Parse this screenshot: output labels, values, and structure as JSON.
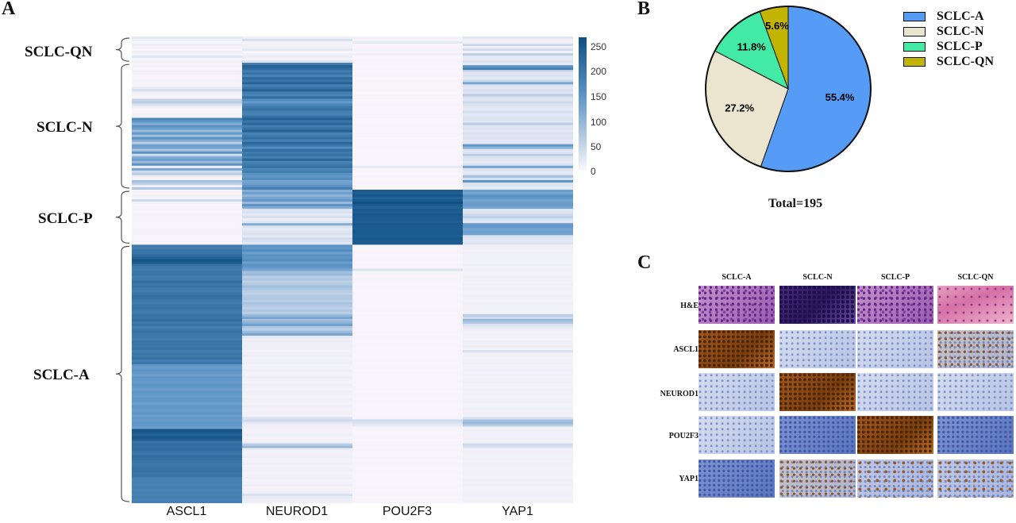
{
  "panels": {
    "a": "A",
    "b": "B",
    "c": "C"
  },
  "chart_data": [
    {
      "type": "heatmap",
      "columns": [
        "ASCL1",
        "NEUROD1",
        "POU2F3",
        "YAP1"
      ],
      "groups": [
        {
          "name": "SCLC-QN",
          "rows": 11
        },
        {
          "name": "SCLC-N",
          "rows": 53
        },
        {
          "name": "SCLC-P",
          "rows": 23
        },
        {
          "name": "SCLC-A",
          "rows": 108
        }
      ],
      "colorbar": {
        "ticks": [
          250,
          200,
          150,
          100,
          50,
          0
        ],
        "range": [
          0,
          260
        ],
        "low_color": "#fbf6fb",
        "high_color": "#0f4f82"
      },
      "values": [
        [
          [
            20,
            10,
            8,
            25
          ],
          [
            10,
            35,
            5,
            10
          ],
          [
            5,
            5,
            20,
            8
          ],
          [
            15,
            8,
            3,
            45
          ],
          [
            8,
            12,
            4,
            12
          ],
          [
            3,
            20,
            6,
            40
          ],
          [
            12,
            5,
            3,
            8
          ],
          [
            6,
            10,
            10,
            60
          ],
          [
            25,
            15,
            2,
            20
          ],
          [
            4,
            6,
            5,
            18
          ],
          [
            10,
            30,
            4,
            30
          ]
        ],
        [
          [
            5,
            190,
            3,
            20
          ],
          [
            8,
            230,
            2,
            150
          ],
          [
            3,
            210,
            4,
            175
          ],
          [
            10,
            185,
            2,
            40
          ],
          [
            6,
            200,
            3,
            25
          ],
          [
            4,
            175,
            5,
            30
          ],
          [
            3,
            215,
            2,
            20
          ],
          [
            7,
            195,
            4,
            45
          ],
          [
            5,
            225,
            3,
            120
          ],
          [
            4,
            180,
            2,
            30
          ],
          [
            20,
            200,
            3,
            25
          ],
          [
            35,
            230,
            5,
            35
          ],
          [
            8,
            185,
            2,
            25
          ],
          [
            5,
            175,
            4,
            60
          ],
          [
            4,
            210,
            3,
            30
          ],
          [
            50,
            160,
            2,
            25
          ],
          [
            60,
            140,
            3,
            40
          ],
          [
            30,
            170,
            4,
            30
          ],
          [
            10,
            190,
            2,
            25
          ],
          [
            5,
            200,
            3,
            20
          ],
          [
            3,
            180,
            2,
            35
          ],
          [
            8,
            175,
            4,
            20
          ],
          [
            6,
            205,
            3,
            25
          ],
          [
            170,
            230,
            2,
            30
          ],
          [
            140,
            195,
            3,
            25
          ],
          [
            110,
            220,
            5,
            60
          ],
          [
            150,
            185,
            4,
            25
          ],
          [
            130,
            200,
            3,
            30
          ],
          [
            90,
            230,
            2,
            20
          ],
          [
            140,
            175,
            4,
            35
          ],
          [
            80,
            190,
            3,
            25
          ],
          [
            150,
            205,
            2,
            30
          ],
          [
            110,
            180,
            4,
            20
          ],
          [
            60,
            220,
            3,
            25
          ],
          [
            130,
            195,
            5,
            140
          ],
          [
            120,
            160,
            4,
            100
          ],
          [
            70,
            210,
            3,
            30
          ],
          [
            150,
            185,
            2,
            25
          ],
          [
            40,
            200,
            4,
            60
          ],
          [
            110,
            180,
            3,
            30
          ],
          [
            130,
            220,
            5,
            25
          ],
          [
            90,
            175,
            2,
            20
          ],
          [
            150,
            190,
            4,
            30
          ],
          [
            10,
            200,
            20,
            120
          ],
          [
            120,
            170,
            3,
            30
          ],
          [
            40,
            185,
            4,
            20
          ],
          [
            60,
            150,
            2,
            25
          ],
          [
            10,
            140,
            4,
            80
          ],
          [
            5,
            160,
            3,
            30
          ],
          [
            80,
            120,
            5,
            150
          ],
          [
            60,
            130,
            4,
            30
          ],
          [
            10,
            150,
            3,
            25
          ],
          [
            70,
            180,
            2,
            20
          ]
        ],
        [
          [
            5,
            110,
            240,
            130
          ],
          [
            3,
            130,
            235,
            120
          ],
          [
            8,
            100,
            250,
            150
          ],
          [
            4,
            120,
            230,
            140
          ],
          [
            45,
            140,
            245,
            125
          ],
          [
            6,
            90,
            260,
            130
          ],
          [
            3,
            150,
            240,
            135
          ],
          [
            5,
            110,
            230,
            120
          ],
          [
            4,
            25,
            240,
            25
          ],
          [
            3,
            30,
            235,
            30
          ],
          [
            6,
            20,
            245,
            40
          ],
          [
            4,
            35,
            238,
            60
          ],
          [
            5,
            15,
            240,
            30
          ],
          [
            3,
            25,
            235,
            25
          ],
          [
            4,
            110,
            245,
            135
          ],
          [
            5,
            30,
            240,
            140
          ],
          [
            3,
            20,
            238,
            120
          ],
          [
            6,
            25,
            244,
            130
          ],
          [
            4,
            30,
            240,
            125
          ],
          [
            5,
            20,
            236,
            30
          ],
          [
            3,
            40,
            245,
            25
          ],
          [
            4,
            30,
            238,
            20
          ],
          [
            5,
            25,
            240,
            30
          ]
        ],
        [
          [
            190,
            150,
            5,
            8
          ],
          [
            185,
            140,
            3,
            10
          ],
          [
            200,
            160,
            4,
            6
          ],
          [
            195,
            130,
            5,
            12
          ],
          [
            210,
            150,
            3,
            8
          ],
          [
            230,
            145,
            4,
            10
          ],
          [
            250,
            160,
            5,
            8
          ],
          [
            240,
            130,
            3,
            6
          ],
          [
            200,
            150,
            4,
            12
          ],
          [
            190,
            140,
            5,
            8
          ],
          [
            185,
            120,
            30,
            10
          ],
          [
            195,
            80,
            5,
            6
          ],
          [
            200,
            90,
            4,
            8
          ],
          [
            185,
            60,
            3,
            10
          ],
          [
            190,
            70,
            5,
            8
          ],
          [
            210,
            55,
            4,
            6
          ],
          [
            195,
            65,
            3,
            12
          ],
          [
            200,
            80,
            5,
            8
          ],
          [
            190,
            70,
            4,
            10
          ],
          [
            185,
            60,
            3,
            6
          ],
          [
            195,
            55,
            5,
            8
          ],
          [
            210,
            65,
            4,
            10
          ],
          [
            200,
            70,
            3,
            8
          ],
          [
            190,
            60,
            5,
            6
          ],
          [
            185,
            75,
            4,
            12
          ],
          [
            195,
            65,
            3,
            8
          ],
          [
            200,
            55,
            5,
            10
          ],
          [
            190,
            70,
            4,
            8
          ],
          [
            185,
            60,
            3,
            6
          ],
          [
            200,
            90,
            5,
            60
          ],
          [
            195,
            120,
            4,
            40
          ],
          [
            210,
            80,
            3,
            90
          ],
          [
            190,
            100,
            5,
            70
          ],
          [
            200,
            130,
            4,
            30
          ],
          [
            185,
            70,
            3,
            20
          ],
          [
            195,
            60,
            5,
            10
          ],
          [
            200,
            90,
            4,
            8
          ],
          [
            190,
            120,
            3,
            12
          ],
          [
            190,
            20,
            5,
            8
          ],
          [
            185,
            10,
            4,
            6
          ],
          [
            200,
            15,
            3,
            10
          ],
          [
            195,
            10,
            5,
            8
          ],
          [
            190,
            12,
            4,
            12
          ],
          [
            200,
            10,
            3,
            6
          ],
          [
            185,
            8,
            5,
            30
          ],
          [
            195,
            10,
            4,
            8
          ],
          [
            190,
            12,
            3,
            10
          ],
          [
            200,
            8,
            5,
            6
          ],
          [
            185,
            10,
            4,
            8
          ],
          [
            195,
            12,
            3,
            10
          ],
          [
            140,
            8,
            5,
            8
          ],
          [
            135,
            6,
            4,
            6
          ],
          [
            145,
            10,
            3,
            12
          ],
          [
            140,
            8,
            5,
            8
          ],
          [
            130,
            6,
            4,
            10
          ],
          [
            145,
            10,
            3,
            6
          ],
          [
            140,
            8,
            5,
            8
          ],
          [
            135,
            6,
            4,
            10
          ],
          [
            145,
            10,
            3,
            8
          ],
          [
            140,
            8,
            5,
            6
          ],
          [
            130,
            6,
            4,
            12
          ],
          [
            145,
            10,
            3,
            8
          ],
          [
            140,
            8,
            5,
            10
          ],
          [
            135,
            6,
            4,
            6
          ],
          [
            145,
            10,
            3,
            8
          ],
          [
            140,
            8,
            5,
            10
          ],
          [
            130,
            6,
            4,
            8
          ],
          [
            145,
            10,
            3,
            6
          ],
          [
            140,
            8,
            5,
            12
          ],
          [
            135,
            6,
            4,
            8
          ],
          [
            145,
            10,
            3,
            10
          ],
          [
            130,
            6,
            4,
            8
          ],
          [
            140,
            30,
            5,
            30
          ],
          [
            135,
            40,
            40,
            80
          ],
          [
            145,
            20,
            30,
            90
          ],
          [
            140,
            10,
            20,
            60
          ],
          [
            130,
            8,
            5,
            8
          ],
          [
            250,
            6,
            4,
            10
          ],
          [
            240,
            8,
            3,
            8
          ],
          [
            230,
            10,
            5,
            12
          ],
          [
            245,
            6,
            4,
            8
          ],
          [
            235,
            8,
            3,
            10
          ],
          [
            200,
            10,
            5,
            8
          ],
          [
            210,
            60,
            4,
            40
          ],
          [
            205,
            90,
            3,
            30
          ],
          [
            215,
            10,
            5,
            8
          ],
          [
            200,
            6,
            4,
            10
          ],
          [
            195,
            8,
            3,
            8
          ],
          [
            210,
            10,
            5,
            6
          ],
          [
            205,
            6,
            4,
            12
          ],
          [
            200,
            8,
            3,
            8
          ],
          [
            190,
            10,
            5,
            10
          ],
          [
            195,
            6,
            4,
            8
          ],
          [
            200,
            8,
            3,
            6
          ],
          [
            205,
            10,
            5,
            8
          ],
          [
            195,
            6,
            4,
            10
          ],
          [
            200,
            8,
            3,
            8
          ],
          [
            180,
            10,
            5,
            6
          ],
          [
            175,
            6,
            4,
            12
          ],
          [
            180,
            8,
            3,
            8
          ],
          [
            175,
            10,
            5,
            10
          ],
          [
            180,
            6,
            4,
            8
          ],
          [
            175,
            8,
            3,
            6
          ],
          [
            180,
            10,
            5,
            8
          ],
          [
            175,
            30,
            4,
            10
          ],
          [
            180,
            20,
            3,
            8
          ],
          [
            175,
            15,
            5,
            6
          ],
          [
            180,
            10,
            4,
            8
          ]
        ]
      ]
    },
    {
      "type": "pie",
      "categories": [
        "SCLC-A",
        "SCLC-N",
        "SCLC-P",
        "SCLC-QN"
      ],
      "values": [
        55.4,
        27.2,
        11.8,
        5.6
      ],
      "labels": [
        "55.4%",
        "27.2%",
        "11.8%",
        "5.6%"
      ],
      "colors": [
        "#569bf5",
        "#ebe4ce",
        "#43eaa6",
        "#c2b400"
      ],
      "total_label": "Total=195",
      "legend": "right"
    }
  ],
  "ihc": {
    "columns": [
      "SCLC-A",
      "SCLC-N",
      "SCLC-P",
      "SCLC-QN"
    ],
    "rows": [
      "H&E",
      "ASCL1",
      "NEUROD1",
      "POU2F3",
      "YAP1"
    ],
    "stains": [
      [
        "stain-he",
        "stain-he-dark",
        "stain-he",
        "stain-he-pink"
      ],
      [
        "stain-brown",
        "stain-blue",
        "stain-blue",
        "stain-mixed"
      ],
      [
        "stain-blue",
        "stain-brown",
        "stain-blue",
        "stain-blue"
      ],
      [
        "stain-blue",
        "stain-blue-dark",
        "stain-brown",
        "stain-blue-dark"
      ],
      [
        "stain-blue-dark",
        "stain-mixed",
        "stain-blue-brown",
        "stain-blue-brown"
      ]
    ]
  }
}
